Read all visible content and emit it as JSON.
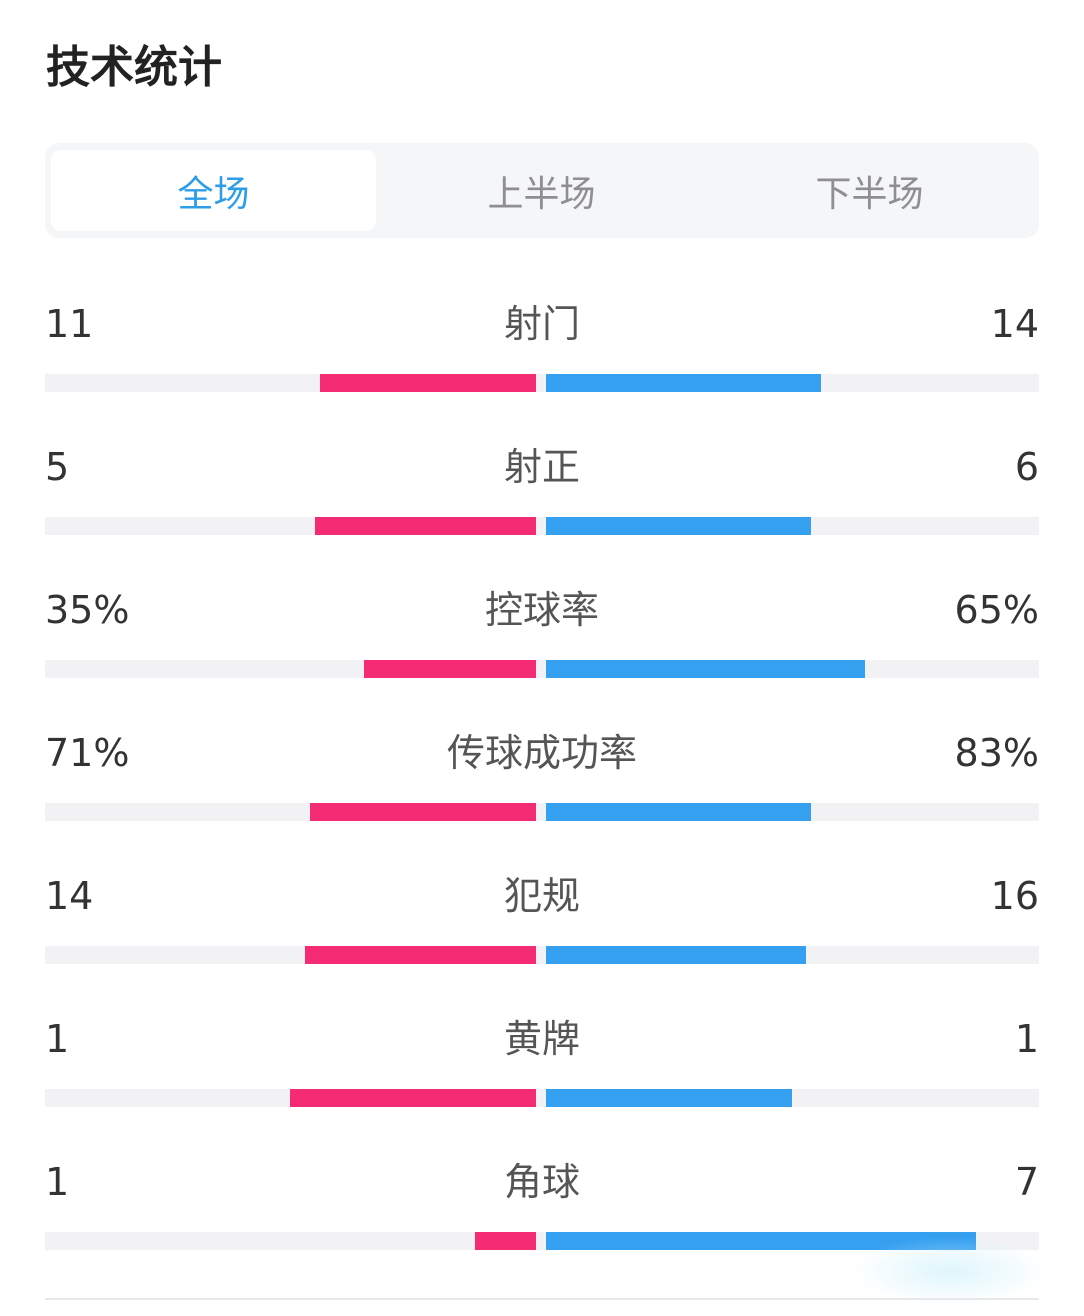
{
  "page_title": "技术统计",
  "tabs": [
    {
      "label": "全场",
      "active": true
    },
    {
      "label": "上半场",
      "active": false
    },
    {
      "label": "下半场",
      "active": false
    }
  ],
  "colors": {
    "home": "#f52b74",
    "away": "#359ff0",
    "accent": "#2d9de8"
  },
  "stats": [
    {
      "label": "射门",
      "home": "11",
      "away": "14",
      "home_fill": 0.44,
      "away_fill": 0.56
    },
    {
      "label": "射正",
      "home": "5",
      "away": "6",
      "home_fill": 0.45,
      "away_fill": 0.54
    },
    {
      "label": "控球率",
      "home": "35%",
      "away": "65%",
      "home_fill": 0.35,
      "away_fill": 0.65
    },
    {
      "label": "传球成功率",
      "home": "71%",
      "away": "83%",
      "home_fill": 0.46,
      "away_fill": 0.54
    },
    {
      "label": "犯规",
      "home": "14",
      "away": "16",
      "home_fill": 0.47,
      "away_fill": 0.53
    },
    {
      "label": "黄牌",
      "home": "1",
      "away": "1",
      "home_fill": 0.5,
      "away_fill": 0.5
    },
    {
      "label": "角球",
      "home": "1",
      "away": "7",
      "home_fill": 0.125,
      "away_fill": 0.875
    }
  ]
}
